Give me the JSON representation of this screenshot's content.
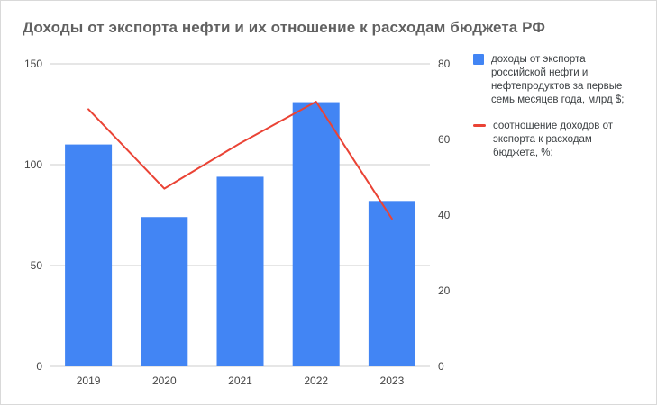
{
  "title": "Доходы от экспорта нефти и их отношение к расходам бюджета РФ",
  "chart_data": {
    "type": "bar",
    "subtype": "combo-bar-line",
    "categories": [
      "2019",
      "2020",
      "2021",
      "2022",
      "2023"
    ],
    "series": [
      {
        "name": "доходы от экспорта российской нефти и нефтепродуктов за первые семь месяцев года, млрд $;",
        "type": "bar",
        "axis": "left",
        "color": "#4285F4",
        "values": [
          110,
          74,
          94,
          131,
          82
        ]
      },
      {
        "name": "соотношение доходов от экспорта к расходам бюджета, %;",
        "type": "line",
        "axis": "right",
        "color": "#EA4335",
        "values": [
          68,
          47,
          59,
          70,
          39
        ]
      }
    ],
    "left_axis": {
      "ticks": [
        0,
        50,
        100,
        150
      ],
      "min": 0,
      "max": 150
    },
    "right_axis": {
      "ticks": [
        0,
        20,
        40,
        60,
        80
      ],
      "min": 0,
      "max": 80
    },
    "grid": true,
    "legend_position": "right",
    "colors": {
      "grid": "#cccccc",
      "axis_text": "#444444",
      "title_text": "#616161",
      "background": "#ffffff"
    }
  }
}
